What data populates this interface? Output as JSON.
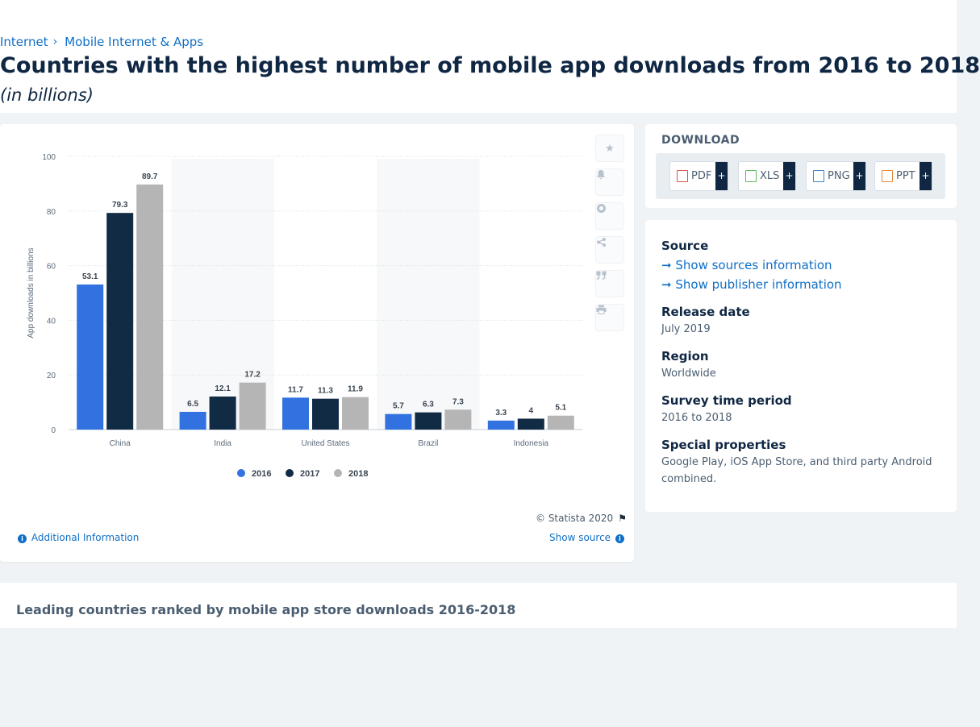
{
  "breadcrumb": {
    "item1": "Internet",
    "separator": "›",
    "item2": "Mobile Internet & Apps"
  },
  "page": {
    "title": "Countries with the highest number of mobile app downloads from 2016 to 2018",
    "subtitle": "(in billions)"
  },
  "chart_data": {
    "type": "bar",
    "categories": [
      "China",
      "India",
      "United States",
      "Brazil",
      "Indonesia"
    ],
    "series": [
      {
        "name": "2016",
        "values": [
          53.1,
          6.5,
          11.7,
          5.7,
          3.3
        ],
        "color": "#3171e0"
      },
      {
        "name": "2017",
        "values": [
          79.3,
          12.1,
          11.3,
          6.3,
          4
        ],
        "color": "#112b45"
      },
      {
        "name": "2018",
        "values": [
          89.7,
          17.2,
          11.9,
          7.3,
          5.1
        ],
        "color": "#b5b5b5"
      }
    ],
    "ylabel": "App downloads in billions",
    "xlabel": "",
    "ylim": [
      0,
      100
    ],
    "yticks": [
      0,
      20,
      40,
      60,
      80,
      100
    ],
    "grid": true,
    "legend_position": "bottom-center"
  },
  "chart_footer": {
    "copyright": "© Statista 2020",
    "additional_info": "Additional Information",
    "show_source": "Show source"
  },
  "toolbar": {
    "icons": [
      "star-icon",
      "bell-icon",
      "gear-icon",
      "share-icon",
      "quote-icon",
      "print-icon"
    ]
  },
  "download": {
    "title": "DOWNLOAD",
    "buttons": [
      {
        "label": "PDF",
        "color": "#d9534f"
      },
      {
        "label": "XLS",
        "color": "#5cb85c"
      },
      {
        "label": "PNG",
        "color": "#3b82c4"
      },
      {
        "label": "PPT",
        "color": "#e8873a"
      }
    ],
    "plus": "+"
  },
  "meta": {
    "source_heading": "Source",
    "sources_link": "Show sources information",
    "publisher_link": "Show publisher information",
    "release_heading": "Release date",
    "release_value": "July 2019",
    "region_heading": "Region",
    "region_value": "Worldwide",
    "survey_heading": "Survey time period",
    "survey_value": "2016 to 2018",
    "special_heading": "Special properties",
    "special_value": "Google Play, iOS App Store, and third party Android combined."
  },
  "related": {
    "title": "Leading countries ranked by mobile app store downloads 2016-2018"
  }
}
